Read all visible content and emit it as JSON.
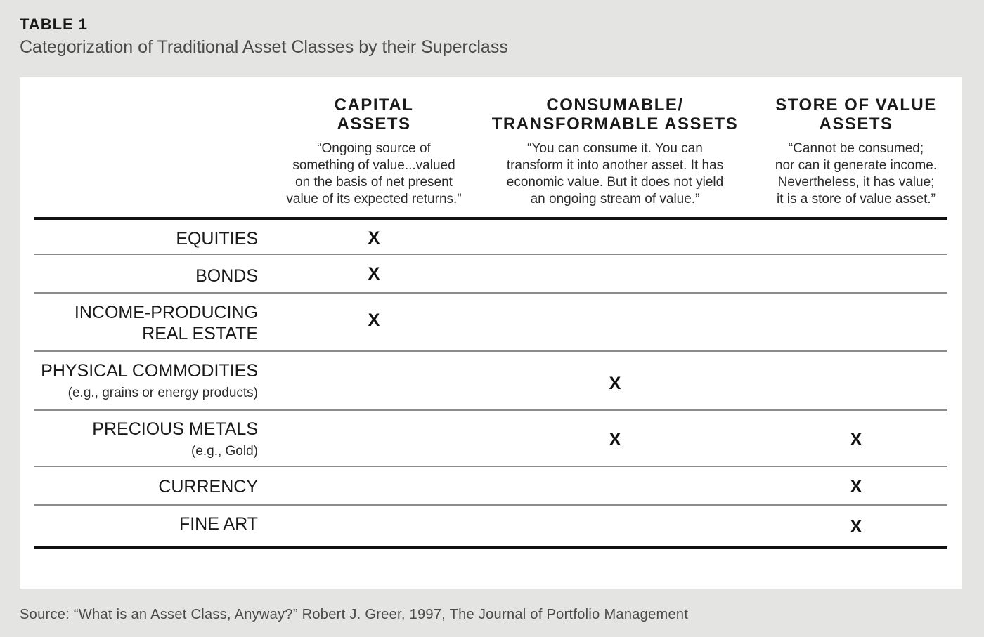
{
  "header": {
    "label": "TABLE 1",
    "caption": "Categorization of Traditional Asset Classes by their Superclass"
  },
  "columns": [
    {
      "title_line1": "CAPITAL",
      "title_line2": "ASSETS",
      "desc_lines": [
        "“Ongoing source of",
        "something of value...valued",
        "on the basis of net present",
        "value of its expected returns.”"
      ]
    },
    {
      "title_line1": "CONSUMABLE/",
      "title_line2": "TRANSFORMABLE ASSETS",
      "desc_lines": [
        "“You can consume it. You can",
        "transform it into another asset. It has",
        "economic value. But it does not yield",
        "an ongoing stream of value.”"
      ]
    },
    {
      "title_line1": "STORE OF VALUE",
      "title_line2": "ASSETS",
      "desc_lines": [
        "“Cannot be consumed;",
        "nor can it generate income.",
        "Nevertheless, it has value;",
        "it is a store of value asset.”"
      ]
    }
  ],
  "rows": [
    {
      "line1": "EQUITIES",
      "line2": "",
      "sub": "",
      "capital": "X",
      "consumable": "",
      "store": ""
    },
    {
      "line1": "BONDS",
      "line2": "",
      "sub": "",
      "capital": "X",
      "consumable": "",
      "store": ""
    },
    {
      "line1": "INCOME-PRODUCING",
      "line2": "REAL ESTATE",
      "sub": "",
      "capital": "X",
      "consumable": "",
      "store": ""
    },
    {
      "line1": "PHYSICAL COMMODITIES",
      "line2": "",
      "sub": "(e.g., grains or energy products)",
      "capital": "",
      "consumable": "X",
      "store": ""
    },
    {
      "line1": "PRECIOUS METALS",
      "line2": "",
      "sub": "(e.g., Gold)",
      "capital": "",
      "consumable": "X",
      "store": "X"
    },
    {
      "line1": "CURRENCY",
      "line2": "",
      "sub": "",
      "capital": "",
      "consumable": "",
      "store": "X"
    },
    {
      "line1": "FINE ART",
      "line2": "",
      "sub": "",
      "capital": "",
      "consumable": "",
      "store": "X"
    }
  ],
  "source": "Source: “What is an Asset Class, Anyway?” Robert J. Greer, 1997, The Journal of Portfolio Management"
}
